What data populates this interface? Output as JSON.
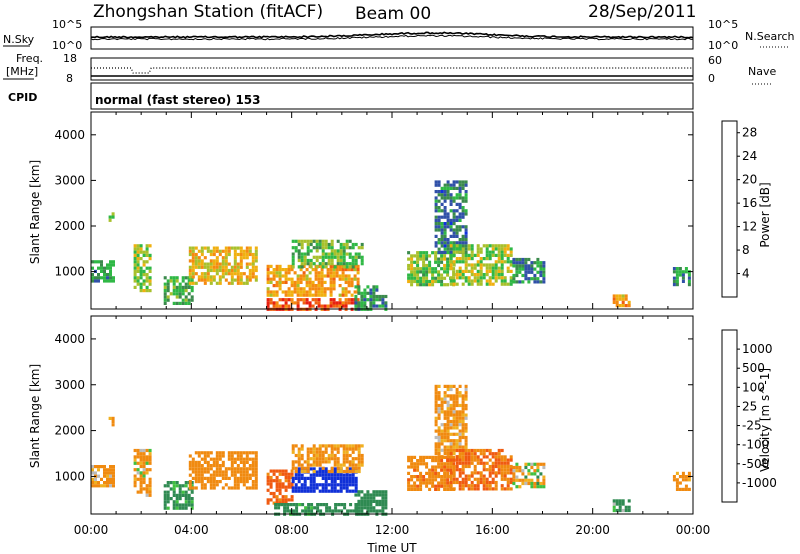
{
  "header": {
    "station": "Zhongshan Station (fitACF)",
    "beam": "Beam 00",
    "date": "28/Sep/2011"
  },
  "strips": {
    "nsky_label": "N.Sky",
    "nsky_ticks": [
      "10^5",
      "10^0"
    ],
    "nsearch_label": "N.Search",
    "nsearch_ticks": [
      "10^5",
      "10^0"
    ],
    "freq_label": "Freq.",
    "freq_unit": "[MHz]",
    "freq_ticks": [
      "18",
      "8"
    ],
    "nave_label": "Nave",
    "nave_ticks": [
      "60",
      "0"
    ],
    "cpid_label": "CPID",
    "cpid_value": "normal (fast stereo) 153"
  },
  "chart_data": [
    {
      "type": "heatmap",
      "name": "power",
      "ylabel": "Slant Range [km]",
      "yticks": [
        "1000",
        "2000",
        "3000",
        "4000"
      ],
      "ylim": [
        180,
        4500
      ],
      "xlim_hours": [
        0,
        24
      ],
      "colorbar_label": "Power [dB]",
      "colorbar_ticks": [
        "4",
        "8",
        "12",
        "16",
        "20",
        "24",
        "28"
      ],
      "colorbar_range": [
        0,
        30
      ],
      "colorbar_colors": [
        "#1030e0",
        "#3050a8",
        "#3b8a4c",
        "#2fb845",
        "#a8c02c",
        "#f0b010",
        "#f58a10",
        "#f06010",
        "#e82010"
      ],
      "echo_regions": [
        {
          "t": [
            0.0,
            0.9
          ],
          "r": [
            800,
            1250
          ],
          "value": 9
        },
        {
          "t": [
            0.7,
            0.9
          ],
          "r": [
            2100,
            2300
          ],
          "value": 14
        },
        {
          "t": [
            1.7,
            2.4
          ],
          "r": [
            600,
            1600
          ],
          "value": 15
        },
        {
          "t": [
            2.9,
            4.0
          ],
          "r": [
            300,
            900
          ],
          "value": 11
        },
        {
          "t": [
            3.9,
            6.6
          ],
          "r": [
            750,
            1550
          ],
          "value": 18
        },
        {
          "t": [
            7.0,
            10.6
          ],
          "r": [
            180,
            420
          ],
          "value": 26
        },
        {
          "t": [
            7.0,
            10.6
          ],
          "r": [
            450,
            1150
          ],
          "value": 20
        },
        {
          "t": [
            8.0,
            10.8
          ],
          "r": [
            1100,
            1700
          ],
          "value": 12
        },
        {
          "t": [
            10.5,
            11.8
          ],
          "r": [
            180,
            700
          ],
          "value": 9
        },
        {
          "t": [
            12.6,
            14.4
          ],
          "r": [
            700,
            1450
          ],
          "value": 13
        },
        {
          "t": [
            13.7,
            15.0
          ],
          "r": [
            1400,
            3000
          ],
          "value": 7
        },
        {
          "t": [
            14.3,
            16.8
          ],
          "r": [
            700,
            1600
          ],
          "value": 15
        },
        {
          "t": [
            16.8,
            18.0
          ],
          "r": [
            800,
            1300
          ],
          "value": 8
        },
        {
          "t": [
            20.8,
            21.5
          ],
          "r": [
            250,
            500
          ],
          "value": 20
        },
        {
          "t": [
            23.2,
            23.8
          ],
          "r": [
            700,
            1100
          ],
          "value": 9
        }
      ]
    },
    {
      "type": "heatmap",
      "name": "velocity",
      "ylabel": "Slant Range [km]",
      "yticks": [
        "1000",
        "2000",
        "3000",
        "4000"
      ],
      "ylim": [
        180,
        4500
      ],
      "xlim_hours": [
        0,
        24
      ],
      "xticks": [
        "00:00",
        "04:00",
        "08:00",
        "12:00",
        "16:00",
        "20:00",
        "00:00"
      ],
      "xlabel": "Time UT",
      "colorbar_label": "Velocity [m s^-1]",
      "colorbar_ticks": [
        "1000",
        "500",
        "100",
        "25",
        "-25",
        "-100",
        "-500",
        "-1000"
      ],
      "colorbar_colors": [
        "#1030d8",
        "#3050a8",
        "#2f8a52",
        "#40c040",
        "#bbbbbb",
        "#f0b020",
        "#f08a10",
        "#f05a10",
        "#e01010"
      ],
      "echo_regions": [
        {
          "t": [
            0.0,
            0.9
          ],
          "r": [
            800,
            1250
          ],
          "value": -150
        },
        {
          "t": [
            0.7,
            0.9
          ],
          "r": [
            2100,
            2300
          ],
          "value": -200
        },
        {
          "t": [
            1.7,
            2.4
          ],
          "r": [
            600,
            1600
          ],
          "value": -120
        },
        {
          "t": [
            2.9,
            4.0
          ],
          "r": [
            300,
            900
          ],
          "value": 200
        },
        {
          "t": [
            3.9,
            6.6
          ],
          "r": [
            750,
            1550
          ],
          "value": -300
        },
        {
          "t": [
            7.0,
            8.0
          ],
          "r": [
            450,
            1150
          ],
          "value": -600
        },
        {
          "t": [
            8.0,
            10.6
          ],
          "r": [
            700,
            1200
          ],
          "value": 1200
        },
        {
          "t": [
            7.3,
            10.6
          ],
          "r": [
            180,
            420
          ],
          "value": 250
        },
        {
          "t": [
            8.0,
            10.8
          ],
          "r": [
            1100,
            1700
          ],
          "value": -200
        },
        {
          "t": [
            10.5,
            11.8
          ],
          "r": [
            180,
            700
          ],
          "value": 300
        },
        {
          "t": [
            12.6,
            14.4
          ],
          "r": [
            700,
            1450
          ],
          "value": -400
        },
        {
          "t": [
            13.7,
            15.0
          ],
          "r": [
            1400,
            3000
          ],
          "value": -150
        },
        {
          "t": [
            14.3,
            16.8
          ],
          "r": [
            700,
            1600
          ],
          "value": -500
        },
        {
          "t": [
            16.8,
            18.0
          ],
          "r": [
            800,
            1300
          ],
          "value": -60
        },
        {
          "t": [
            20.8,
            21.5
          ],
          "r": [
            250,
            500
          ],
          "value": 150
        },
        {
          "t": [
            23.2,
            23.8
          ],
          "r": [
            700,
            1100
          ],
          "value": -250
        }
      ]
    }
  ]
}
